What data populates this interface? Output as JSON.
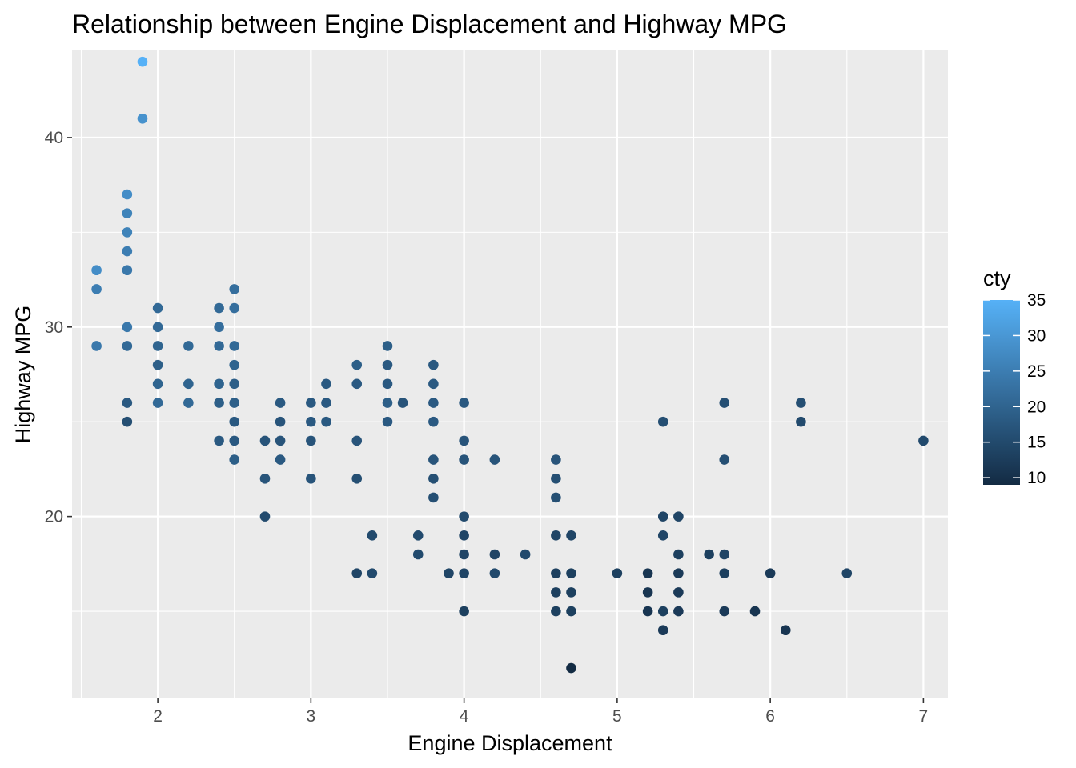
{
  "chart_data": {
    "type": "scatter",
    "title": "Relationship between Engine Displacement and Highway MPG",
    "xlabel": "Engine Displacement",
    "ylabel": "Highway MPG",
    "xlim": [
      1.44,
      7.16
    ],
    "ylim": [
      10.4,
      44.6
    ],
    "x_ticks": [
      2,
      3,
      4,
      5,
      6,
      7
    ],
    "y_ticks": [
      20,
      30,
      40
    ],
    "grid": true,
    "legend": {
      "title": "cty",
      "position": "right",
      "type": "colorbar",
      "ticks": [
        10,
        15,
        20,
        25,
        30,
        35
      ],
      "range": [
        9,
        35
      ],
      "color_low": "#132B43",
      "color_high": "#56B1F7"
    },
    "colors": {
      "panel_background": "#EBEBEB",
      "grid": "#FFFFFF",
      "tick_label": "#4D4D4D"
    },
    "points": [
      {
        "x": 1.6,
        "y": 33,
        "cty": 28
      },
      {
        "x": 1.6,
        "y": 32,
        "cty": 25
      },
      {
        "x": 1.6,
        "y": 29,
        "cty": 24
      },
      {
        "x": 1.8,
        "y": 37,
        "cty": 28
      },
      {
        "x": 1.8,
        "y": 36,
        "cty": 26
      },
      {
        "x": 1.8,
        "y": 35,
        "cty": 26
      },
      {
        "x": 1.8,
        "y": 34,
        "cty": 25
      },
      {
        "x": 1.8,
        "y": 33,
        "cty": 24
      },
      {
        "x": 1.8,
        "y": 30,
        "cty": 24
      },
      {
        "x": 1.8,
        "y": 29,
        "cty": 21
      },
      {
        "x": 1.8,
        "y": 26,
        "cty": 18
      },
      {
        "x": 1.8,
        "y": 25,
        "cty": 16
      },
      {
        "x": 1.9,
        "y": 44,
        "cty": 35
      },
      {
        "x": 1.9,
        "y": 41,
        "cty": 29
      },
      {
        "x": 2.0,
        "y": 31,
        "cty": 21
      },
      {
        "x": 2.0,
        "y": 30,
        "cty": 21
      },
      {
        "x": 2.0,
        "y": 29,
        "cty": 20
      },
      {
        "x": 2.0,
        "y": 28,
        "cty": 19
      },
      {
        "x": 2.0,
        "y": 27,
        "cty": 20
      },
      {
        "x": 2.0,
        "y": 26,
        "cty": 21
      },
      {
        "x": 2.2,
        "y": 29,
        "cty": 21
      },
      {
        "x": 2.2,
        "y": 27,
        "cty": 20
      },
      {
        "x": 2.2,
        "y": 26,
        "cty": 21
      },
      {
        "x": 2.4,
        "y": 31,
        "cty": 21
      },
      {
        "x": 2.4,
        "y": 30,
        "cty": 22
      },
      {
        "x": 2.4,
        "y": 29,
        "cty": 21
      },
      {
        "x": 2.4,
        "y": 27,
        "cty": 20
      },
      {
        "x": 2.4,
        "y": 26,
        "cty": 19
      },
      {
        "x": 2.4,
        "y": 24,
        "cty": 18
      },
      {
        "x": 2.5,
        "y": 32,
        "cty": 22
      },
      {
        "x": 2.5,
        "y": 31,
        "cty": 22
      },
      {
        "x": 2.5,
        "y": 29,
        "cty": 21
      },
      {
        "x": 2.5,
        "y": 28,
        "cty": 20
      },
      {
        "x": 2.5,
        "y": 27,
        "cty": 19
      },
      {
        "x": 2.5,
        "y": 26,
        "cty": 19
      },
      {
        "x": 2.5,
        "y": 25,
        "cty": 18
      },
      {
        "x": 2.5,
        "y": 24,
        "cty": 18
      },
      {
        "x": 2.5,
        "y": 23,
        "cty": 19
      },
      {
        "x": 2.7,
        "y": 24,
        "cty": 17
      },
      {
        "x": 2.7,
        "y": 22,
        "cty": 17
      },
      {
        "x": 2.7,
        "y": 20,
        "cty": 15
      },
      {
        "x": 2.8,
        "y": 26,
        "cty": 18
      },
      {
        "x": 2.8,
        "y": 25,
        "cty": 17
      },
      {
        "x": 2.8,
        "y": 24,
        "cty": 17
      },
      {
        "x": 2.8,
        "y": 23,
        "cty": 18
      },
      {
        "x": 3.0,
        "y": 26,
        "cty": 18
      },
      {
        "x": 3.0,
        "y": 25,
        "cty": 18
      },
      {
        "x": 3.0,
        "y": 24,
        "cty": 17
      },
      {
        "x": 3.0,
        "y": 22,
        "cty": 17
      },
      {
        "x": 3.1,
        "y": 27,
        "cty": 18
      },
      {
        "x": 3.1,
        "y": 26,
        "cty": 18
      },
      {
        "x": 3.1,
        "y": 25,
        "cty": 18
      },
      {
        "x": 3.3,
        "y": 28,
        "cty": 19
      },
      {
        "x": 3.3,
        "y": 27,
        "cty": 18
      },
      {
        "x": 3.3,
        "y": 24,
        "cty": 17
      },
      {
        "x": 3.3,
        "y": 22,
        "cty": 16
      },
      {
        "x": 3.3,
        "y": 17,
        "cty": 14
      },
      {
        "x": 3.4,
        "y": 19,
        "cty": 15
      },
      {
        "x": 3.4,
        "y": 17,
        "cty": 15
      },
      {
        "x": 3.5,
        "y": 29,
        "cty": 19
      },
      {
        "x": 3.5,
        "y": 28,
        "cty": 18
      },
      {
        "x": 3.5,
        "y": 27,
        "cty": 18
      },
      {
        "x": 3.5,
        "y": 26,
        "cty": 19
      },
      {
        "x": 3.5,
        "y": 25,
        "cty": 18
      },
      {
        "x": 3.6,
        "y": 26,
        "cty": 17
      },
      {
        "x": 3.7,
        "y": 19,
        "cty": 15
      },
      {
        "x": 3.7,
        "y": 18,
        "cty": 15
      },
      {
        "x": 3.8,
        "y": 28,
        "cty": 18
      },
      {
        "x": 3.8,
        "y": 27,
        "cty": 18
      },
      {
        "x": 3.8,
        "y": 26,
        "cty": 18
      },
      {
        "x": 3.8,
        "y": 25,
        "cty": 18
      },
      {
        "x": 3.8,
        "y": 23,
        "cty": 17
      },
      {
        "x": 3.8,
        "y": 22,
        "cty": 16
      },
      {
        "x": 3.8,
        "y": 21,
        "cty": 16
      },
      {
        "x": 3.9,
        "y": 17,
        "cty": 14
      },
      {
        "x": 4.0,
        "y": 26,
        "cty": 18
      },
      {
        "x": 4.0,
        "y": 24,
        "cty": 17
      },
      {
        "x": 4.0,
        "y": 23,
        "cty": 17
      },
      {
        "x": 4.0,
        "y": 20,
        "cty": 15
      },
      {
        "x": 4.0,
        "y": 19,
        "cty": 14
      },
      {
        "x": 4.0,
        "y": 18,
        "cty": 14
      },
      {
        "x": 4.0,
        "y": 17,
        "cty": 14
      },
      {
        "x": 4.0,
        "y": 15,
        "cty": 13
      },
      {
        "x": 4.2,
        "y": 23,
        "cty": 17
      },
      {
        "x": 4.2,
        "y": 18,
        "cty": 14
      },
      {
        "x": 4.2,
        "y": 17,
        "cty": 15
      },
      {
        "x": 4.4,
        "y": 18,
        "cty": 15
      },
      {
        "x": 4.6,
        "y": 23,
        "cty": 17
      },
      {
        "x": 4.6,
        "y": 22,
        "cty": 16
      },
      {
        "x": 4.6,
        "y": 21,
        "cty": 16
      },
      {
        "x": 4.6,
        "y": 19,
        "cty": 14
      },
      {
        "x": 4.6,
        "y": 17,
        "cty": 13
      },
      {
        "x": 4.6,
        "y": 16,
        "cty": 13
      },
      {
        "x": 4.6,
        "y": 15,
        "cty": 13
      },
      {
        "x": 4.7,
        "y": 19,
        "cty": 14
      },
      {
        "x": 4.7,
        "y": 17,
        "cty": 13
      },
      {
        "x": 4.7,
        "y": 16,
        "cty": 13
      },
      {
        "x": 4.7,
        "y": 15,
        "cty": 13
      },
      {
        "x": 4.7,
        "y": 12,
        "cty": 9
      },
      {
        "x": 5.0,
        "y": 17,
        "cty": 13
      },
      {
        "x": 5.2,
        "y": 17,
        "cty": 11
      },
      {
        "x": 5.2,
        "y": 16,
        "cty": 11
      },
      {
        "x": 5.2,
        "y": 15,
        "cty": 11
      },
      {
        "x": 5.3,
        "y": 25,
        "cty": 16
      },
      {
        "x": 5.3,
        "y": 20,
        "cty": 14
      },
      {
        "x": 5.3,
        "y": 19,
        "cty": 14
      },
      {
        "x": 5.3,
        "y": 15,
        "cty": 13
      },
      {
        "x": 5.3,
        "y": 14,
        "cty": 12
      },
      {
        "x": 5.4,
        "y": 20,
        "cty": 14
      },
      {
        "x": 5.4,
        "y": 18,
        "cty": 13
      },
      {
        "x": 5.4,
        "y": 17,
        "cty": 12
      },
      {
        "x": 5.4,
        "y": 16,
        "cty": 12
      },
      {
        "x": 5.4,
        "y": 15,
        "cty": 12
      },
      {
        "x": 5.6,
        "y": 18,
        "cty": 13
      },
      {
        "x": 5.7,
        "y": 26,
        "cty": 16
      },
      {
        "x": 5.7,
        "y": 23,
        "cty": 16
      },
      {
        "x": 5.7,
        "y": 18,
        "cty": 14
      },
      {
        "x": 5.7,
        "y": 17,
        "cty": 13
      },
      {
        "x": 5.7,
        "y": 15,
        "cty": 12
      },
      {
        "x": 5.9,
        "y": 15,
        "cty": 11
      },
      {
        "x": 6.0,
        "y": 17,
        "cty": 12
      },
      {
        "x": 6.1,
        "y": 14,
        "cty": 11
      },
      {
        "x": 6.2,
        "y": 26,
        "cty": 16
      },
      {
        "x": 6.2,
        "y": 25,
        "cty": 15
      },
      {
        "x": 6.5,
        "y": 17,
        "cty": 14
      },
      {
        "x": 7.0,
        "y": 24,
        "cty": 15
      }
    ]
  }
}
